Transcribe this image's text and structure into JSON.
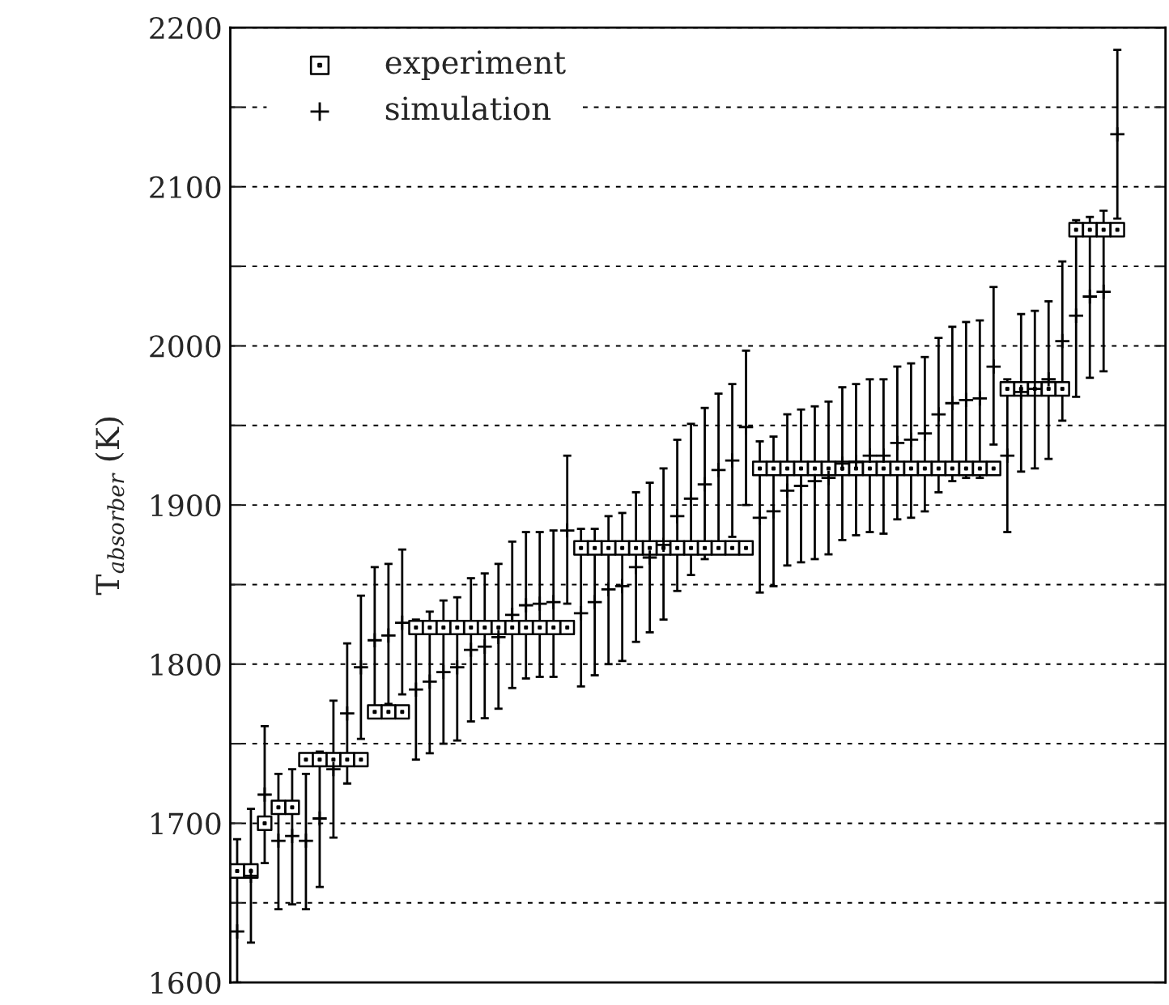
{
  "chart_data": {
    "type": "scatter",
    "ylabel": "T$_{absorber}$ (K)",
    "categories": [
      null,
      null,
      null,
      null,
      null,
      null,
      null,
      null,
      null,
      null,
      null,
      null,
      null,
      null,
      null,
      null,
      null,
      null,
      null,
      null,
      null,
      null,
      null,
      null,
      null,
      null,
      null,
      null,
      null,
      null,
      null,
      null,
      null,
      null,
      null,
      null,
      null,
      null,
      null,
      null,
      null,
      null,
      null,
      null,
      null,
      null,
      null,
      null,
      null,
      null,
      null,
      null,
      null,
      null,
      null,
      null,
      null,
      null,
      null,
      null,
      null,
      null,
      null,
      null,
      null,
      null,
      null,
      null
    ],
    "ylim": [
      1600,
      2200
    ],
    "yticks": [
      1600,
      {
        "value": 1650,
        "label": null
      },
      1700,
      {
        "value": 1750,
        "label": null
      },
      1800,
      {
        "value": 1850,
        "label": null
      },
      1900,
      {
        "value": 1950,
        "label": null
      },
      2000,
      {
        "value": 2050,
        "label": null
      },
      2100,
      {
        "value": 2150,
        "label": null
      },
      2200
    ],
    "tick_labels": "y",
    "grid": "y",
    "legend": "top left",
    "series": [
      {
        "name": "experiment",
        "marker": "square",
        "color": "#000000",
        "values": [
          1670,
          1670,
          1700,
          1710,
          1710,
          1740,
          1740,
          1740,
          1740,
          1740,
          1770,
          1770,
          1770,
          1823,
          1823,
          1823,
          1823,
          1823,
          1823,
          1823,
          1823,
          1823,
          1823,
          1823,
          1823,
          1873,
          1873,
          1873,
          1873,
          1873,
          1873,
          1873,
          1873,
          1873,
          1873,
          1873,
          1873,
          1873,
          1923,
          1923,
          1923,
          1923,
          1923,
          1923,
          1923,
          1923,
          1923,
          1923,
          1923,
          1923,
          1923,
          1923,
          1923,
          1923,
          1923,
          1923,
          1973,
          1973,
          1973,
          1973,
          1973,
          2073,
          2073,
          2073,
          2073,
          null,
          null,
          null
        ]
      },
      {
        "name": "simulation",
        "marker": "cross",
        "color": "#000000",
        "values": [
          1632,
          1667,
          1718,
          1689,
          1692,
          1689,
          1703,
          1734,
          1769,
          1798,
          1815,
          1818,
          1826,
          1784,
          1789,
          1795,
          1798,
          1809,
          1811,
          1817,
          1831,
          1837,
          1838,
          1839,
          1884,
          1832,
          1839,
          1847,
          1849,
          1861,
          1867,
          1875,
          1893,
          1904,
          1913,
          1922,
          1928,
          1949,
          1892,
          1896,
          1909,
          1912,
          1915,
          1917,
          1926,
          1927,
          1931,
          1931,
          1939,
          1941,
          1945,
          1957,
          1964,
          1966,
          1967,
          1987,
          1931,
          1971,
          1973,
          1979,
          2003,
          2019,
          2031,
          2034,
          2133,
          null,
          null,
          null
        ],
        "errors": [
          [
            1600,
            1690
          ],
          [
            1625,
            1709
          ],
          [
            1675,
            1761
          ],
          [
            1646,
            1731
          ],
          [
            1649,
            1734
          ],
          [
            1646,
            1731
          ],
          [
            1660,
            1745
          ],
          [
            1691,
            1777
          ],
          [
            1725,
            1813
          ],
          [
            1753,
            1843
          ],
          [
            1772,
            1861
          ],
          [
            1775,
            1863
          ],
          [
            1781,
            1872
          ],
          [
            1740,
            1828
          ],
          [
            1744,
            1833
          ],
          [
            1750,
            1840
          ],
          [
            1752,
            1842
          ],
          [
            1764,
            1854
          ],
          [
            1766,
            1857
          ],
          [
            1772,
            1863
          ],
          [
            1785,
            1877
          ],
          [
            1791,
            1883
          ],
          [
            1792,
            1883
          ],
          [
            1792,
            1884
          ],
          [
            1838,
            1931
          ],
          [
            1786,
            1885
          ],
          [
            1793,
            1885
          ],
          [
            1800,
            1893
          ],
          [
            1802,
            1895
          ],
          [
            1814,
            1908
          ],
          [
            1820,
            1914
          ],
          [
            1828,
            1923
          ],
          [
            1846,
            1941
          ],
          [
            1856,
            1951
          ],
          [
            1866,
            1961
          ],
          [
            1874,
            1970
          ],
          [
            1880,
            1976
          ],
          [
            1900,
            1997
          ],
          [
            1845,
            1940
          ],
          [
            1849,
            1943
          ],
          [
            1862,
            1957
          ],
          [
            1864,
            1960
          ],
          [
            1866,
            1962
          ],
          [
            1869,
            1965
          ],
          [
            1878,
            1974
          ],
          [
            1881,
            1976
          ],
          [
            1883,
            1979
          ],
          [
            1882,
            1979
          ],
          [
            1891,
            1987
          ],
          [
            1892,
            1989
          ],
          [
            1896,
            1993
          ],
          [
            1908,
            2005
          ],
          [
            1915,
            2012
          ],
          [
            1917,
            2015
          ],
          [
            1917,
            2016
          ],
          [
            1938,
            2037
          ],
          [
            1883,
            1979
          ],
          [
            1921,
            2020
          ],
          [
            1923,
            2022
          ],
          [
            1929,
            2028
          ],
          [
            1953,
            2053
          ],
          [
            1968,
            2079
          ],
          [
            1980,
            2081
          ],
          [
            1984,
            2085
          ],
          [
            2080,
            2186
          ],
          null,
          null,
          null
        ]
      }
    ]
  }
}
